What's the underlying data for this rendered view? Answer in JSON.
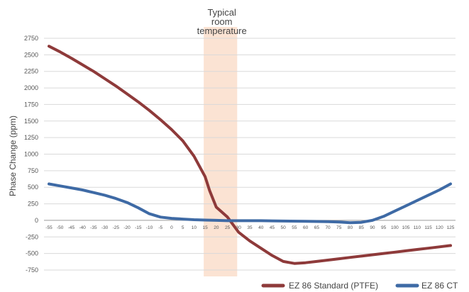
{
  "chart_data": {
    "type": "line",
    "title": "",
    "xlabel": "",
    "ylabel": "Phase Change (ppm)",
    "xlim": [
      -55,
      125
    ],
    "ylim": [
      -750,
      2750
    ],
    "x_ticks": [
      -55,
      -50,
      -45,
      -40,
      -35,
      -30,
      -25,
      -20,
      -15,
      -10,
      -5,
      0,
      5,
      10,
      15,
      20,
      25,
      30,
      35,
      40,
      45,
      50,
      55,
      60,
      65,
      70,
      75,
      80,
      85,
      90,
      95,
      100,
      105,
      110,
      115,
      120,
      125
    ],
    "y_ticks": [
      -750,
      -500,
      -250,
      0,
      250,
      500,
      750,
      1000,
      1250,
      1500,
      1750,
      2000,
      2250,
      2500,
      2750
    ],
    "grid": true,
    "legend_position": "bottom-right",
    "highlight_band": {
      "x_range": [
        15,
        30
      ],
      "color": "#fbe3d3",
      "label_lines": [
        "Typical",
        "room",
        "temperature"
      ]
    },
    "series": [
      {
        "name": "EZ 86 Standard (PTFE)",
        "color": "#8e3a3a",
        "x": [
          -55,
          -50,
          -45,
          -40,
          -35,
          -30,
          -25,
          -20,
          -15,
          -10,
          -5,
          0,
          5,
          10,
          15,
          17,
          20,
          25,
          30,
          35,
          40,
          45,
          50,
          55,
          60,
          65,
          70,
          75,
          80,
          85,
          90,
          95,
          100,
          105,
          110,
          115,
          120,
          125
        ],
        "y": [
          2630,
          2545,
          2450,
          2350,
          2250,
          2140,
          2030,
          1910,
          1790,
          1660,
          1520,
          1370,
          1200,
          970,
          660,
          450,
          200,
          50,
          -180,
          -310,
          -420,
          -530,
          -620,
          -650,
          -640,
          -620,
          -600,
          -580,
          -560,
          -540,
          -520,
          -500,
          -480,
          -460,
          -440,
          -420,
          -400,
          -380
        ]
      },
      {
        "name": "EZ 86 CT",
        "color": "#3e6aa5",
        "x": [
          -55,
          -50,
          -45,
          -40,
          -35,
          -30,
          -25,
          -20,
          -15,
          -10,
          -5,
          0,
          5,
          10,
          15,
          20,
          25,
          30,
          40,
          50,
          60,
          70,
          75,
          80,
          85,
          90,
          95,
          100,
          105,
          110,
          115,
          120,
          125
        ],
        "y": [
          550,
          520,
          490,
          460,
          420,
          380,
          330,
          270,
          190,
          100,
          50,
          30,
          20,
          10,
          5,
          0,
          -5,
          -5,
          -5,
          -10,
          -15,
          -20,
          -25,
          -35,
          -30,
          0,
          60,
          140,
          220,
          300,
          380,
          460,
          550
        ]
      }
    ]
  }
}
